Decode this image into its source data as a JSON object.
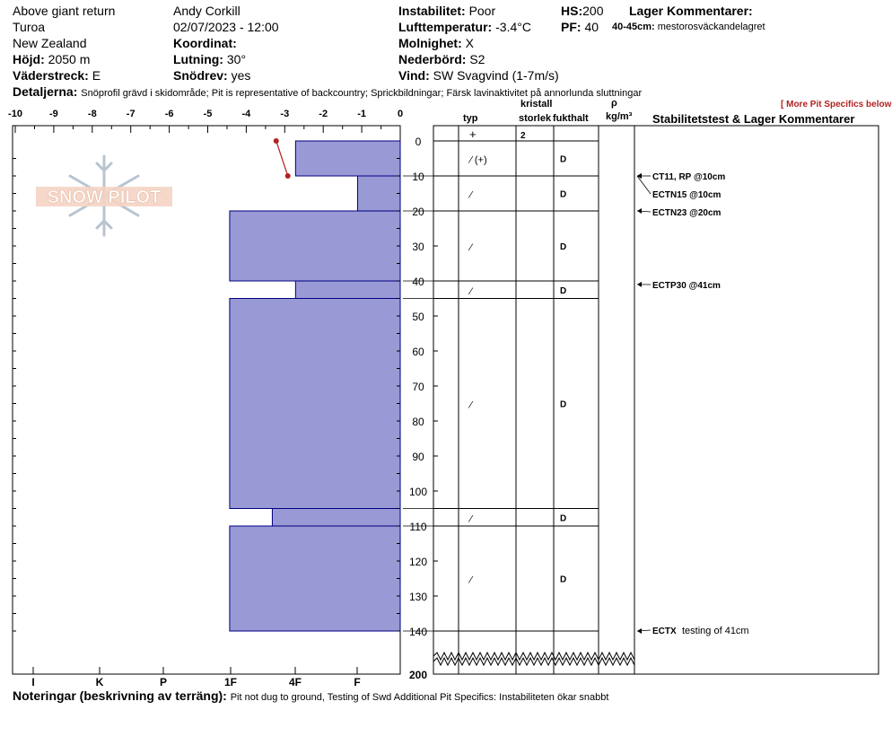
{
  "header": {
    "location": "Above giant return",
    "area": "Turoa",
    "country": "New Zealand",
    "elevation_label": "Höjd:",
    "elevation_value": "2050 m",
    "aspect_label": "Väderstreck:",
    "aspect_value": "E",
    "observer": "Andy Corkill",
    "datetime": "02/07/2023 - 12:00",
    "coord_label": "Koordinat:",
    "slope_label": "Lutning:",
    "slope_value": "30°",
    "drift_label": "Snödrev:",
    "drift_value": "yes",
    "instability_label": "Instabilitet:",
    "instability_value": "Poor",
    "airtemp_label": "Lufttemperatur:",
    "airtemp_value": "-3.4°C",
    "sky_label": "Molnighet:",
    "sky_value": "X",
    "precip_label": "Nederbörd:",
    "precip_value": "S2",
    "wind_label": "Vind:",
    "wind_value": "SW Svagvind (1-7m/s)",
    "hs_label": "HS:",
    "hs_value": "200",
    "pf_label": "PF:",
    "pf_value": "40",
    "layer_comments_label": "Lager Kommentarer:",
    "layer_comment_range": "40-45cm:",
    "layer_comment_text": "mestorosväckandelagret",
    "details_label": "Detaljerna:",
    "details_text": "Snöprofil grävd i skidområde;  Pit is representative of backcountry;  Sprickbildningar;  Färsk lavinaktivitet på annorlunda sluttningar",
    "more_specifics": "[ More Pit Specifics below ]"
  },
  "columns": {
    "crystal": "kristall",
    "type": "typ",
    "size": "storlek",
    "moisture": "fukthalt",
    "rho": "ρ",
    "density_unit": "kg/m³",
    "stability_title": "Stabilitetstest & Lager Kommentarer"
  },
  "footer": {
    "notes_label": "Noteringar (beskrivning av terräng):",
    "notes_text": "Pit not dug to ground, Testing of Swd Additional Pit Specifics: Instabiliteten ökar snabbt"
  },
  "logo_text": "SNOW PILOT",
  "chart_data": {
    "type": "snow_profile",
    "temperature_axis": {
      "ticks": [
        "-10",
        "-9",
        "-8",
        "-7",
        "-6",
        "-5",
        "-4",
        "-3",
        "-2",
        "-1",
        "0"
      ],
      "range": [
        -10,
        0
      ]
    },
    "hardness_axis": {
      "ticks": [
        "I",
        "K",
        "P",
        "1F",
        "4F",
        "F"
      ]
    },
    "depth_axis": {
      "ticks": [
        "0",
        "10",
        "20",
        "30",
        "40",
        "50",
        "60",
        "70",
        "80",
        "90",
        "100",
        "110",
        "120",
        "130",
        "140",
        "200"
      ],
      "range": [
        0,
        200
      ],
      "break_after": 140
    },
    "temperature_profile": [
      {
        "depth": 0,
        "temp": -3.2
      },
      {
        "depth": 10,
        "temp": -2.9
      }
    ],
    "layers": [
      {
        "top": 0,
        "bottom": 10,
        "hardness_fraction": 0.27,
        "crystal": "⁄ (+)",
        "moisture": "D"
      },
      {
        "top": 10,
        "bottom": 20,
        "hardness_fraction": 0.11,
        "crystal": "⁄",
        "moisture": "D"
      },
      {
        "top": 20,
        "bottom": 40,
        "hardness_fraction": 0.44,
        "crystal": "⁄",
        "moisture": "D"
      },
      {
        "top": 40,
        "bottom": 45,
        "hardness_fraction": 0.27,
        "crystal": "⁄",
        "moisture": "D"
      },
      {
        "top": 45,
        "bottom": 105,
        "hardness_fraction": 0.44,
        "crystal": "⁄",
        "moisture": "D"
      },
      {
        "top": 105,
        "bottom": 110,
        "hardness_fraction": 0.33,
        "crystal": "⁄",
        "moisture": "D"
      },
      {
        "top": 110,
        "bottom": 140,
        "hardness_fraction": 0.44,
        "crystal": "⁄",
        "moisture": "D"
      }
    ],
    "surface_row": {
      "crystal": "+",
      "size": "2"
    },
    "stability_tests": [
      {
        "depth": 10,
        "label": "CT11, RP @10cm"
      },
      {
        "depth": 10,
        "label": "ECTN15 @10cm"
      },
      {
        "depth": 20,
        "label": "ECTN23 @20cm"
      },
      {
        "depth": 41,
        "label": "ECTP30 @41cm"
      },
      {
        "depth": 140,
        "label": "ECTX",
        "note": "testing of 41cm"
      }
    ],
    "colors": {
      "layer_fill": "#9999d6",
      "layer_stroke": "#000080",
      "temp_line": "#b22222"
    }
  }
}
